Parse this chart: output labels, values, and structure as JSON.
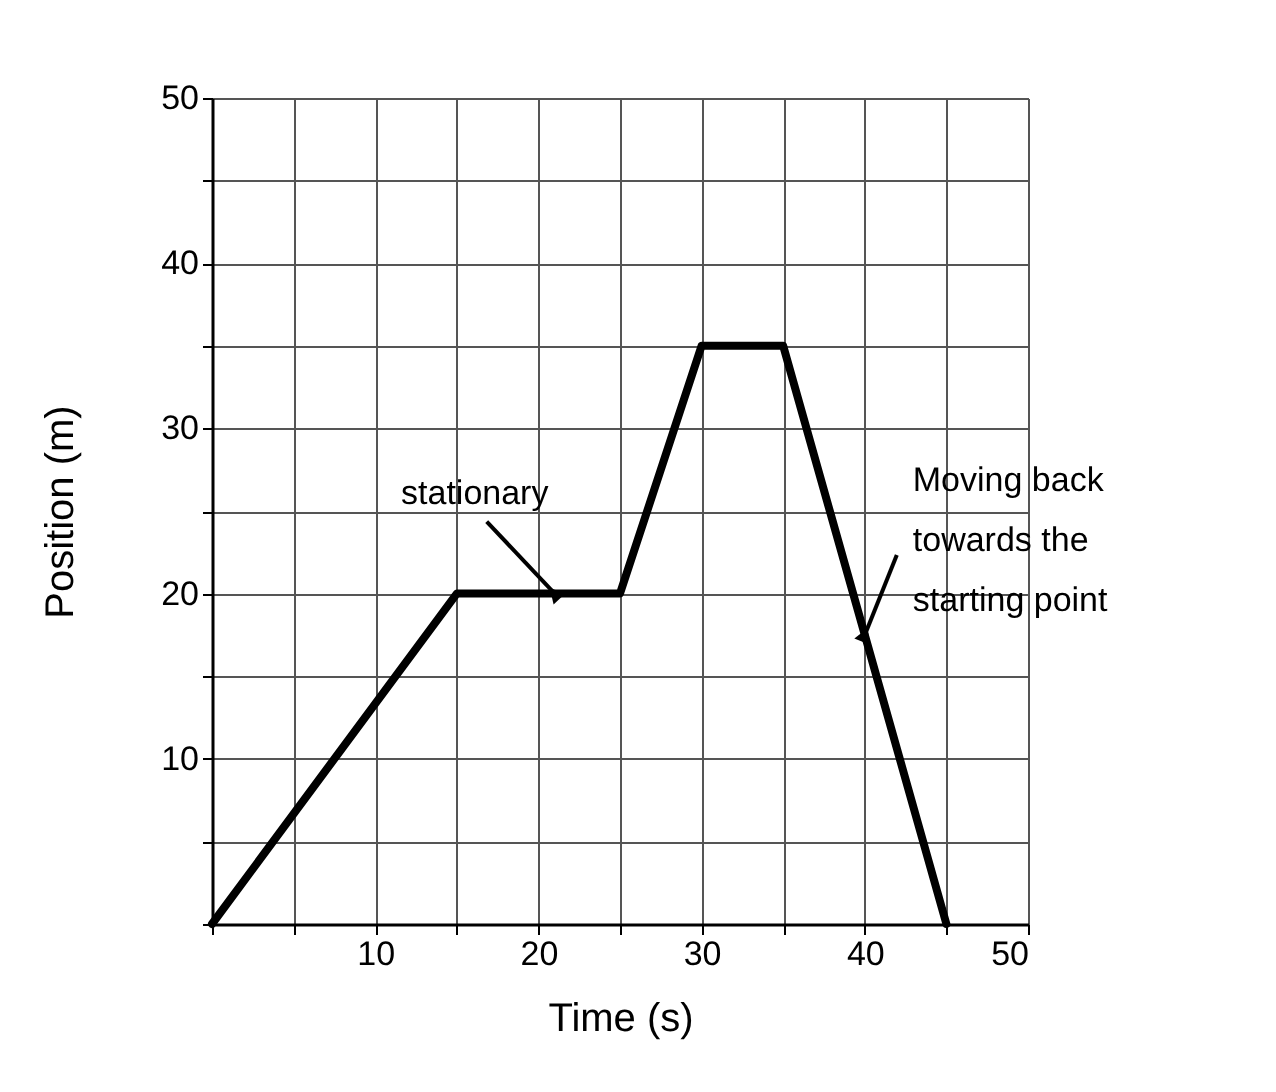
{
  "chart_data": {
    "type": "line",
    "xlabel": "Time (s)",
    "ylabel": "Position (m)",
    "x": [
      0,
      15,
      25,
      30,
      35,
      45
    ],
    "series": [
      {
        "color": "#000000",
        "values": [
          0,
          20,
          20,
          35,
          35,
          0
        ]
      }
    ],
    "xlim": [
      0,
      50
    ],
    "ylim": [
      0,
      50
    ],
    "xticks": [
      {
        "value": 0,
        "label": null
      },
      {
        "value": 5,
        "label": null
      },
      10,
      {
        "value": 15,
        "label": null
      },
      20,
      {
        "value": 25,
        "label": null
      },
      30,
      {
        "value": 35,
        "label": null
      },
      40,
      {
        "value": 45,
        "label": null
      },
      50
    ],
    "yticks": [
      {
        "value": 0,
        "label": null
      },
      {
        "value": 5,
        "label": null
      },
      10,
      {
        "value": 15,
        "label": null
      },
      20,
      {
        "value": 25,
        "label": null
      },
      30,
      {
        "value": 35,
        "label": null
      },
      40,
      {
        "value": 45,
        "label": null
      },
      50
    ],
    "grid": true,
    "marker": "none",
    "line_style": "solid",
    "annotations": [
      {
        "text": "stationary",
        "x": 21,
        "y": 20
      },
      {
        "text": "Moving back towards the starting point",
        "x": 40,
        "y": 17.5
      }
    ]
  }
}
